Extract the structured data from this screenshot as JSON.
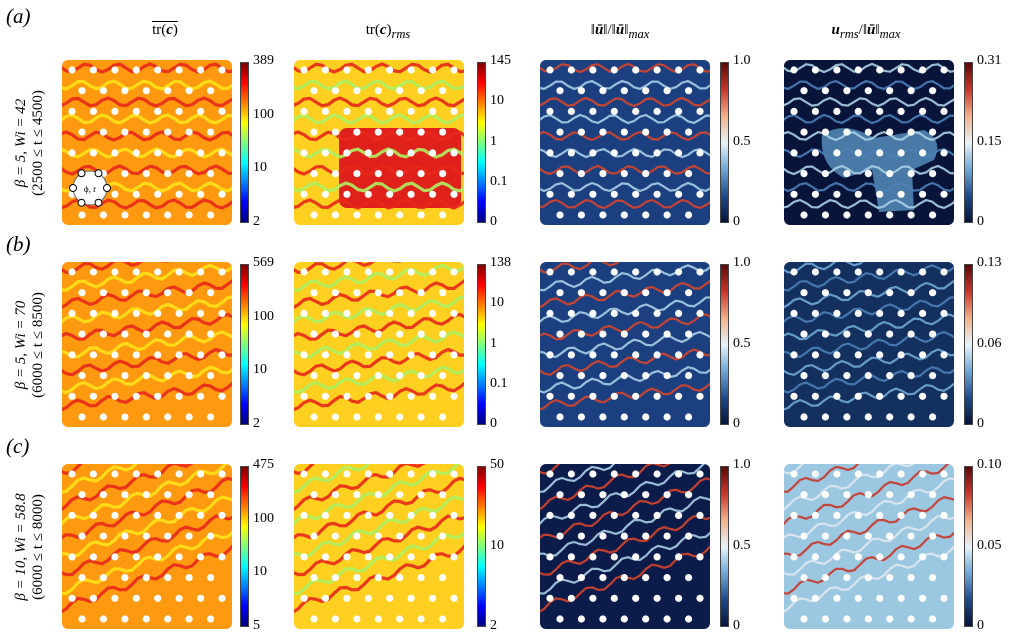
{
  "row_labels": [
    "(a)",
    "(b)",
    "(c)"
  ],
  "column_titles": [
    "tr(c)",
    "tr(c)rms",
    "‖ū‖/‖ū‖max",
    "urms/‖ū‖max"
  ],
  "column_titles_html": [
    "<span style=\"text-decoration:overline\">tr(<b><i>c</i></b>)</span>",
    "tr(<b><i>c</i></b>)<sub><i>rms</i></sub>",
    "‖<b><i>ū</i></b>‖/‖<b><i>ū</i></b>‖<sub><i>max</i></sub>",
    "<b><i>u</i></b><sub><i>rms</i></sub>/‖<b><i>ū</i></b>‖<sub><i>max</i></sub>"
  ],
  "rows": [
    {
      "param": "β = 5, Wi = 42",
      "time": "(2500 ≤ t ≤ 4500)",
      "colorbars": [
        [
          "389",
          "100",
          "10",
          "2"
        ],
        [
          "145",
          "10",
          "1",
          "0.1",
          "0"
        ],
        [
          "1.0",
          "0.5",
          "0"
        ],
        [
          "0.31",
          "0.15",
          "0"
        ]
      ]
    },
    {
      "param": "β = 5, Wi = 70",
      "time": "(6000 ≤ t ≤ 8500)",
      "colorbars": [
        [
          "569",
          "100",
          "10",
          "2"
        ],
        [
          "138",
          "10",
          "1",
          "0.1",
          "0"
        ],
        [
          "1.0",
          "0.5",
          "0"
        ],
        [
          "0.13",
          "0.06",
          "0"
        ]
      ]
    },
    {
      "param": "β = 10, Wi = 58.8",
      "time": "(6000 ≤ t ≤ 8000)",
      "colorbars": [
        [
          "475",
          "100",
          "10",
          "5"
        ],
        [
          "50",
          "10",
          "2"
        ],
        [
          "1.0",
          "0.5",
          "0"
        ],
        [
          "0.10",
          "0.05",
          "0"
        ]
      ]
    }
  ],
  "inset_label": "ϕ, r",
  "colors": {
    "jet": [
      "#00007f",
      "#0000ff",
      "#007fff",
      "#00ffff",
      "#7fff7f",
      "#ffff00",
      "#ff7f00",
      "#ff0000",
      "#7f0000"
    ],
    "diverging": [
      "#08143a",
      "#1f4a8a",
      "#6fa8d6",
      "#e8f3f8",
      "#f2b08a",
      "#c8362a",
      "#5a0a0a"
    ]
  }
}
